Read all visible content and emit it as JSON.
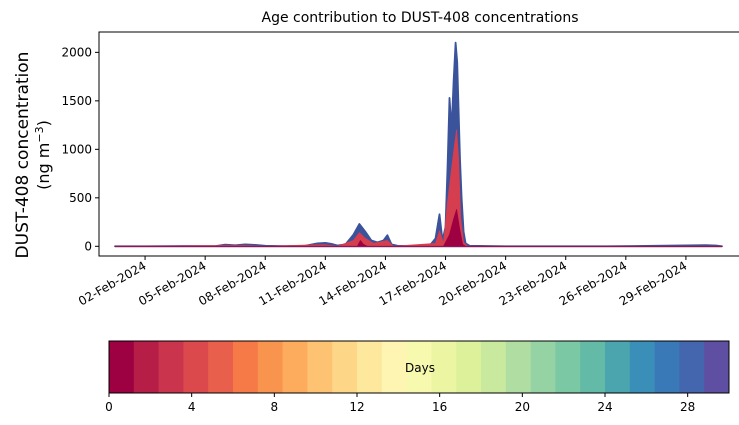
{
  "chart_data": [
    {
      "type": "area",
      "title": "Age contribution to DUST-408 concentrations",
      "ylabel_line1": "DUST-408 concentration",
      "ylabel_line2_prefix": "(ng m",
      "ylabel_line2_sup": "−3",
      "ylabel_line2_suffix": ")",
      "xlabel": "",
      "x_ticks": [
        "02-Feb-2024",
        "05-Feb-2024",
        "08-Feb-2024",
        "11-Feb-2024",
        "14-Feb-2024",
        "17-Feb-2024",
        "20-Feb-2024",
        "23-Feb-2024",
        "26-Feb-2024",
        "29-Feb-2024"
      ],
      "x_tick_days": [
        2,
        5,
        8,
        11,
        14,
        17,
        20,
        23,
        26,
        29
      ],
      "xlim_days": [
        -0.3,
        31.7
      ],
      "y_ticks": [
        0,
        500,
        1000,
        1500,
        2000
      ],
      "ylim": [
        -100,
        2210
      ],
      "grid": false,
      "series": [
        {
          "color": "#3a539b",
          "points": [
            [
              0.5,
              0
            ],
            [
              2,
              0
            ],
            [
              4,
              3
            ],
            [
              5.5,
              2
            ],
            [
              6,
              18
            ],
            [
              6.5,
              10
            ],
            [
              7,
              20
            ],
            [
              7.5,
              14
            ],
            [
              8,
              5
            ],
            [
              9,
              2
            ],
            [
              10,
              5
            ],
            [
              10.6,
              30
            ],
            [
              11,
              35
            ],
            [
              11.3,
              25
            ],
            [
              11.6,
              8
            ],
            [
              12,
              20
            ],
            [
              12.4,
              120
            ],
            [
              12.7,
              230
            ],
            [
              13,
              150
            ],
            [
              13.3,
              60
            ],
            [
              13.6,
              40
            ],
            [
              13.9,
              60
            ],
            [
              14.1,
              115
            ],
            [
              14.3,
              20
            ],
            [
              14.6,
              5
            ],
            [
              15.5,
              0
            ],
            [
              16.2,
              5
            ],
            [
              16.5,
              80
            ],
            [
              16.7,
              330
            ],
            [
              16.85,
              60
            ],
            [
              17.0,
              200
            ],
            [
              17.1,
              800
            ],
            [
              17.2,
              1530
            ],
            [
              17.3,
              1200
            ],
            [
              17.4,
              1700
            ],
            [
              17.5,
              2100
            ],
            [
              17.58,
              1900
            ],
            [
              17.65,
              1400
            ],
            [
              17.72,
              900
            ],
            [
              17.8,
              500
            ],
            [
              17.9,
              150
            ],
            [
              18.0,
              30
            ],
            [
              18.2,
              5
            ],
            [
              20,
              0
            ],
            [
              25,
              0
            ],
            [
              29.5,
              10
            ],
            [
              30,
              12
            ],
            [
              30.5,
              8
            ],
            [
              30.8,
              0
            ]
          ]
        },
        {
          "color": "#d53e4f",
          "points": [
            [
              0.5,
              0
            ],
            [
              6,
              8
            ],
            [
              7,
              8
            ],
            [
              8,
              0
            ],
            [
              10.6,
              15
            ],
            [
              11,
              15
            ],
            [
              11.6,
              0
            ],
            [
              12.4,
              60
            ],
            [
              12.7,
              140
            ],
            [
              13,
              80
            ],
            [
              13.4,
              30
            ],
            [
              14.1,
              60
            ],
            [
              14.4,
              0
            ],
            [
              16.5,
              30
            ],
            [
              16.7,
              160
            ],
            [
              16.9,
              30
            ],
            [
              17.1,
              450
            ],
            [
              17.3,
              800
            ],
            [
              17.45,
              1050
            ],
            [
              17.55,
              1200
            ],
            [
              17.65,
              900
            ],
            [
              17.75,
              300
            ],
            [
              17.9,
              40
            ],
            [
              18.1,
              0
            ],
            [
              30.8,
              0
            ]
          ]
        },
        {
          "color": "#9e0142",
          "points": [
            [
              0.5,
              0
            ],
            [
              12.6,
              0
            ],
            [
              12.75,
              60
            ],
            [
              12.9,
              20
            ],
            [
              13.1,
              0
            ],
            [
              16.9,
              0
            ],
            [
              17.2,
              120
            ],
            [
              17.4,
              280
            ],
            [
              17.55,
              380
            ],
            [
              17.7,
              180
            ],
            [
              17.85,
              20
            ],
            [
              18,
              0
            ],
            [
              30.8,
              0
            ]
          ]
        }
      ]
    },
    {
      "type": "heatmap",
      "colorbar_label": "Days",
      "range": [
        0,
        30
      ],
      "ticks": [
        0,
        4,
        8,
        12,
        16,
        20,
        24,
        28
      ],
      "colors": [
        "#9e0142",
        "#b61e48",
        "#cb344d",
        "#dc494c",
        "#e8604c",
        "#f57a48",
        "#f9944f",
        "#fdac5d",
        "#fdc272",
        "#fed688",
        "#fee89d",
        "#fef5b2",
        "#f7faae",
        "#ecf6a2",
        "#ddf19b",
        "#c9e99e",
        "#b0dea2",
        "#96d3a4",
        "#7bc8a5",
        "#62baa7",
        "#4aa5ae",
        "#3a8fb9",
        "#3a79b7",
        "#4466ae",
        "#5e4fa2"
      ]
    }
  ]
}
